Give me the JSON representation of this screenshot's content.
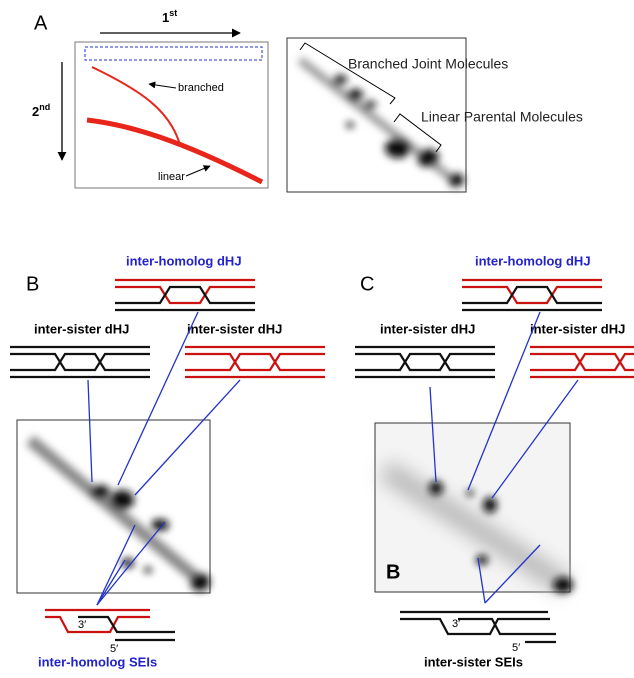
{
  "panel_a": {
    "label": "A",
    "x_axis": {
      "base": "1",
      "sup": "st"
    },
    "y_axis": {
      "base": "2",
      "sup": "nd"
    },
    "curve_labels": [
      "branched",
      "linear"
    ],
    "gel_labels": [
      "Branched Joint Molecules",
      "Linear Parental Molecules"
    ]
  },
  "panel_b": {
    "label": "B",
    "diagram_labels": [
      "inter-homolog dHJ",
      "inter-sister dHJ",
      "inter-sister dHJ",
      "inter-homolog SEIs"
    ],
    "strand_ends": [
      "3′",
      "5′"
    ]
  },
  "panel_c": {
    "label": "C",
    "diagram_labels": [
      "inter-homolog dHJ",
      "inter-sister dHJ",
      "inter-sister dHJ",
      "inter-sister SEIs"
    ],
    "strand_ends": [
      "3′",
      "5′"
    ],
    "gel_label": "B"
  }
}
